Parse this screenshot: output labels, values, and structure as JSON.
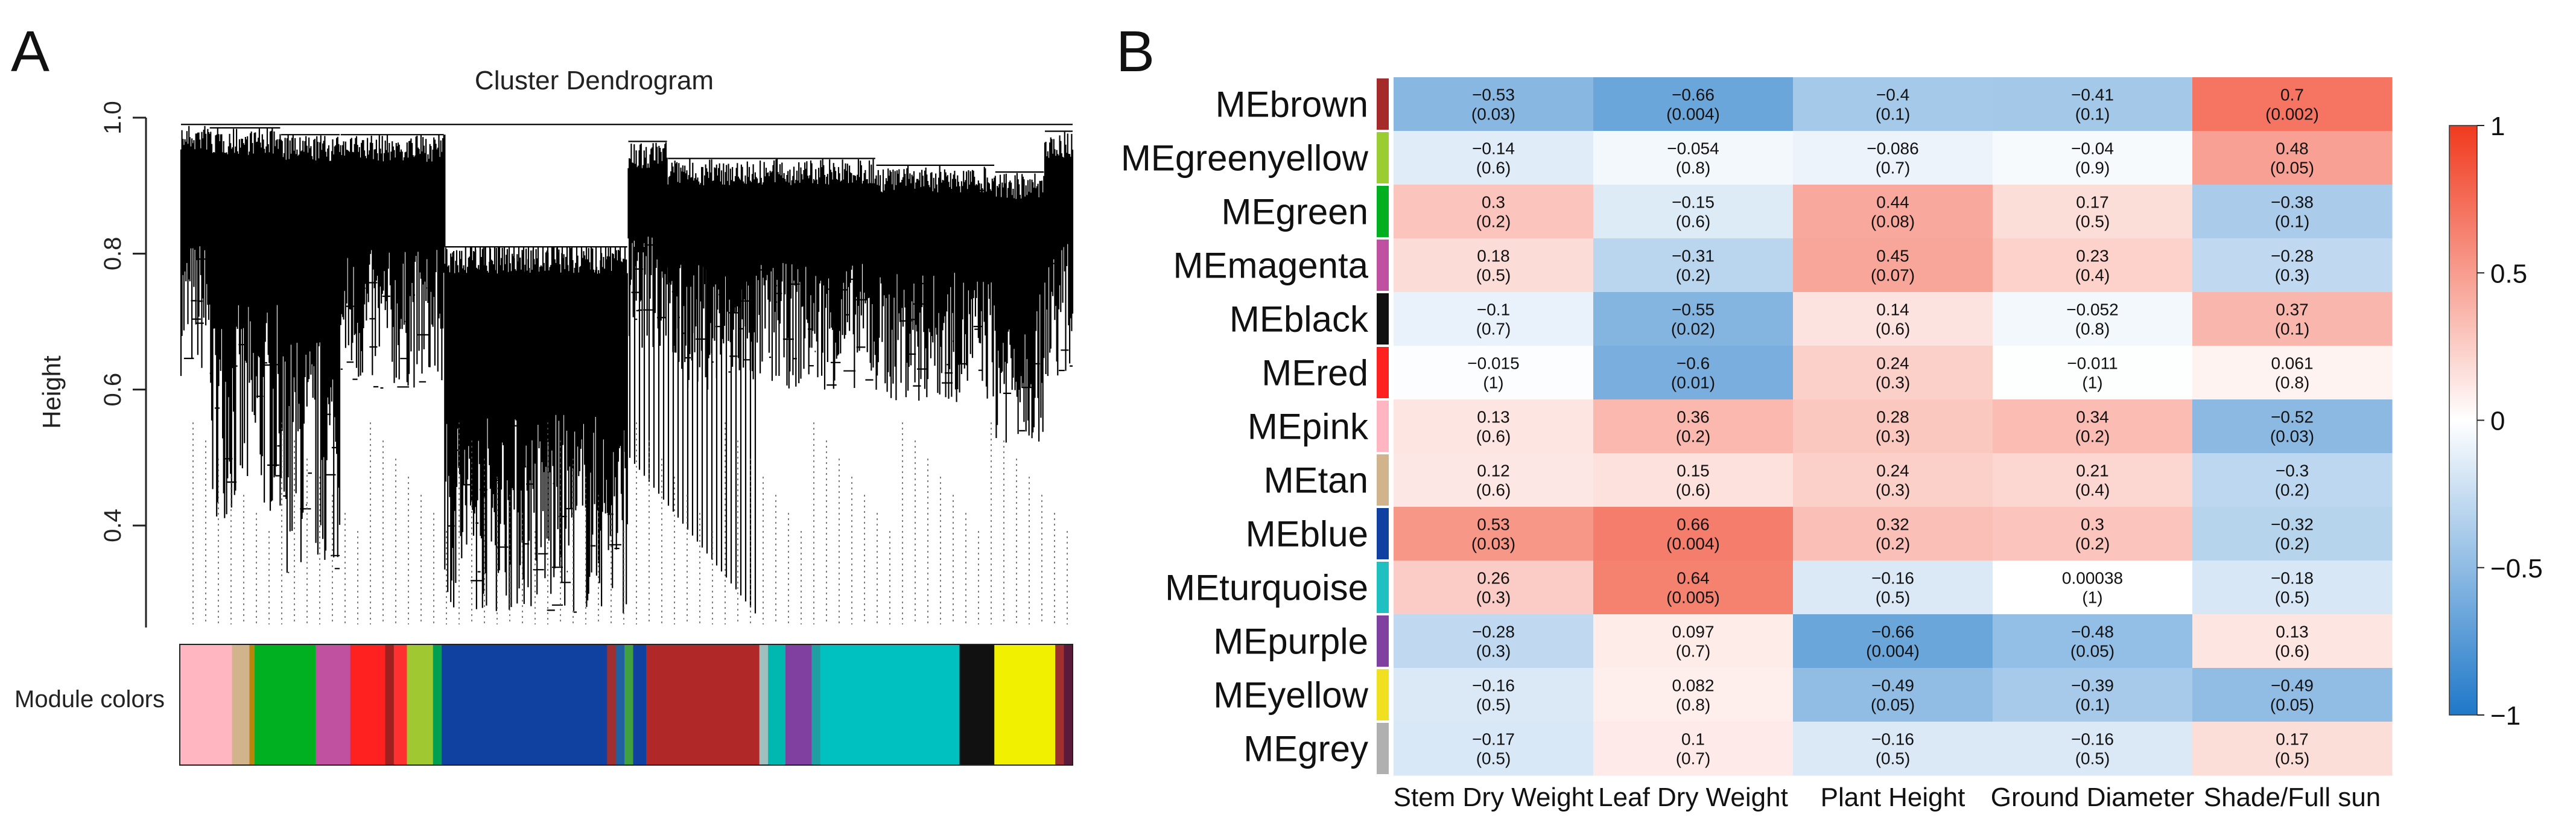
{
  "chart_data": [
    {
      "panel": "A",
      "type": "dendrogram",
      "title": "Cluster Dendrogram",
      "ylabel": "Height",
      "yticks": [
        "0.4",
        "0.6",
        "0.8",
        "1.0"
      ],
      "ylim": [
        0.25,
        1.0
      ],
      "module_colors_label": "Module colors",
      "module_color_blocks": [
        {
          "color": "#ffb6c1",
          "w": 6
        },
        {
          "color": "#d2b48c",
          "w": 2
        },
        {
          "color": "#b8860b",
          "w": 0.6
        },
        {
          "color": "#00b020",
          "w": 7
        },
        {
          "color": "#c050a0",
          "w": 4
        },
        {
          "color": "#ff2020",
          "w": 4
        },
        {
          "color": "#a02020",
          "w": 1
        },
        {
          "color": "#ff3030",
          "w": 1.5
        },
        {
          "color": "#a0c830",
          "w": 3
        },
        {
          "color": "#00a050",
          "w": 1
        },
        {
          "color": "#1040a0",
          "w": 19
        },
        {
          "color": "#a03030",
          "w": 1
        },
        {
          "color": "#2060a0",
          "w": 1
        },
        {
          "color": "#40a040",
          "w": 1
        },
        {
          "color": "#1040a0",
          "w": 1.5
        },
        {
          "color": "#b02828",
          "w": 13
        },
        {
          "color": "#a0c0c0",
          "w": 1
        },
        {
          "color": "#00b8b0",
          "w": 2
        },
        {
          "color": "#8040a0",
          "w": 3
        },
        {
          "color": "#20a0a0",
          "w": 1
        },
        {
          "color": "#00c0c0",
          "w": 16
        },
        {
          "color": "#111111",
          "w": 4
        },
        {
          "color": "#f0f000",
          "w": 7
        },
        {
          "color": "#a03030",
          "w": 1
        },
        {
          "color": "#5a1a3a",
          "w": 1
        }
      ]
    },
    {
      "panel": "B",
      "type": "heatmap",
      "rows": [
        "MEbrown",
        "MEgreenyellow",
        "MEgreen",
        "MEmagenta",
        "MEblack",
        "MEred",
        "MEpink",
        "MEtan",
        "MEblue",
        "MEturquoise",
        "MEpurple",
        "MEyellow",
        "MEgrey"
      ],
      "row_colors": [
        "#a52a2a",
        "#9acd32",
        "#00b020",
        "#c050a0",
        "#111111",
        "#ff2020",
        "#ffb6c1",
        "#d2b48c",
        "#1040a0",
        "#20c0c0",
        "#8040a0",
        "#f0e020",
        "#b0b0b0"
      ],
      "columns": [
        "Stem Dry Weight",
        "Leaf Dry Weight",
        "Plant Height",
        "Ground Diameter",
        "Shade/Full sun"
      ],
      "values": [
        [
          -0.53,
          -0.66,
          -0.4,
          -0.41,
          0.7
        ],
        [
          -0.14,
          -0.054,
          -0.086,
          -0.04,
          0.48
        ],
        [
          0.3,
          -0.15,
          0.44,
          0.17,
          -0.38
        ],
        [
          0.18,
          -0.31,
          0.45,
          0.23,
          -0.28
        ],
        [
          -0.1,
          -0.55,
          0.14,
          -0.052,
          0.37
        ],
        [
          -0.015,
          -0.6,
          0.24,
          -0.011,
          0.061
        ],
        [
          0.13,
          0.36,
          0.28,
          0.34,
          -0.52
        ],
        [
          0.12,
          0.15,
          0.24,
          0.21,
          -0.3
        ],
        [
          0.53,
          0.66,
          0.32,
          0.3,
          -0.32
        ],
        [
          0.26,
          0.64,
          -0.16,
          0.00038,
          -0.18
        ],
        [
          -0.28,
          0.097,
          -0.66,
          -0.48,
          0.13
        ],
        [
          -0.16,
          0.082,
          -0.49,
          -0.39,
          -0.49
        ],
        [
          -0.17,
          0.1,
          -0.16,
          -0.16,
          0.17
        ]
      ],
      "value_labels": [
        [
          "−0.53",
          "−0.66",
          "−0.4",
          "−0.41",
          "0.7"
        ],
        [
          "−0.14",
          "−0.054",
          "−0.086",
          "−0.04",
          "0.48"
        ],
        [
          "0.3",
          "−0.15",
          "0.44",
          "0.17",
          "−0.38"
        ],
        [
          "0.18",
          "−0.31",
          "0.45",
          "0.23",
          "−0.28"
        ],
        [
          "−0.1",
          "−0.55",
          "0.14",
          "−0.052",
          "0.37"
        ],
        [
          "−0.015",
          "−0.6",
          "0.24",
          "−0.011",
          "0.061"
        ],
        [
          "0.13",
          "0.36",
          "0.28",
          "0.34",
          "−0.52"
        ],
        [
          "0.12",
          "0.15",
          "0.24",
          "0.21",
          "−0.3"
        ],
        [
          "0.53",
          "0.66",
          "0.32",
          "0.3",
          "−0.32"
        ],
        [
          "0.26",
          "0.64",
          "−0.16",
          "0.00038",
          "−0.18"
        ],
        [
          "−0.28",
          "0.097",
          "−0.66",
          "−0.48",
          "0.13"
        ],
        [
          "−0.16",
          "0.082",
          "−0.49",
          "−0.39",
          "−0.49"
        ],
        [
          "−0.17",
          "0.1",
          "−0.16",
          "−0.16",
          "0.17"
        ]
      ],
      "pvalues": [
        [
          "(0.03)",
          "(0.004)",
          "(0.1)",
          "(0.1)",
          "(0.002)"
        ],
        [
          "(0.6)",
          "(0.8)",
          "(0.7)",
          "(0.9)",
          "(0.05)"
        ],
        [
          "(0.2)",
          "(0.6)",
          "(0.08)",
          "(0.5)",
          "(0.1)"
        ],
        [
          "(0.5)",
          "(0.2)",
          "(0.07)",
          "(0.4)",
          "(0.3)"
        ],
        [
          "(0.7)",
          "(0.02)",
          "(0.6)",
          "(0.8)",
          "(0.1)"
        ],
        [
          "(1)",
          "(0.01)",
          "(0.3)",
          "(1)",
          "(0.8)"
        ],
        [
          "(0.6)",
          "(0.2)",
          "(0.3)",
          "(0.2)",
          "(0.03)"
        ],
        [
          "(0.6)",
          "(0.6)",
          "(0.3)",
          "(0.4)",
          "(0.2)"
        ],
        [
          "(0.03)",
          "(0.004)",
          "(0.2)",
          "(0.2)",
          "(0.2)"
        ],
        [
          "(0.3)",
          "(0.005)",
          "(0.5)",
          "(1)",
          "(0.5)"
        ],
        [
          "(0.3)",
          "(0.7)",
          "(0.004)",
          "(0.05)",
          "(0.6)"
        ],
        [
          "(0.5)",
          "(0.8)",
          "(0.05)",
          "(0.1)",
          "(0.05)"
        ],
        [
          "(0.5)",
          "(0.7)",
          "(0.5)",
          "(0.5)",
          "(0.5)"
        ]
      ],
      "colorbar_ticks": [
        "1",
        "0.5",
        "0",
        "−0.5",
        "−1"
      ],
      "zlim": [
        -1,
        1
      ],
      "colors": {
        "low": "#1f78c8",
        "mid": "#ffffff",
        "high": "#f03a1e"
      }
    }
  ],
  "panels": {
    "a": "A",
    "b": "B"
  }
}
